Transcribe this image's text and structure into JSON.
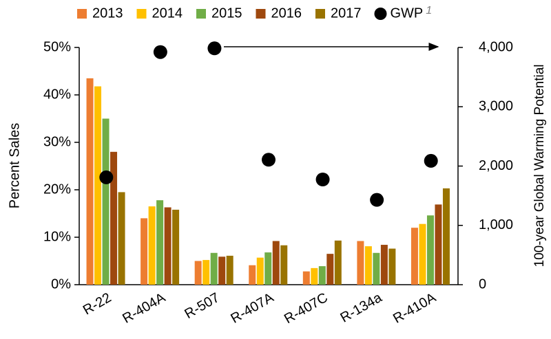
{
  "chart_data": {
    "type": "bar",
    "categories": [
      "R-22",
      "R-404A",
      "R-507",
      "R-407A",
      "R-407C",
      "R-134a",
      "R-410A"
    ],
    "y_label": "Percent Sales",
    "y2_label": "100-year Global Warming Potential",
    "ylim": [
      0,
      50
    ],
    "yticks": [
      {
        "value": 0,
        "label": "0%"
      },
      {
        "value": 10,
        "label": "10%"
      },
      {
        "value": 20,
        "label": "20%"
      },
      {
        "value": 30,
        "label": "30%"
      },
      {
        "value": 40,
        "label": "40%"
      },
      {
        "value": 50,
        "label": "50%"
      }
    ],
    "y2lim": [
      0,
      4000
    ],
    "y2ticks": [
      0,
      {
        "value": 1000,
        "label": "1,000"
      },
      {
        "value": 2000,
        "label": "2,000"
      },
      {
        "value": 3000,
        "label": "3,000"
      },
      {
        "value": 4000,
        "label": "4,000"
      }
    ],
    "legend_position": "top",
    "series": [
      {
        "name": "2013",
        "color": "#ed7d31",
        "values": [
          43.5,
          14,
          5,
          4.1,
          2.8,
          9.2,
          12
        ]
      },
      {
        "name": "2014",
        "color": "#ffc000",
        "values": [
          41.8,
          16.5,
          5.2,
          5.7,
          3.5,
          8.1,
          12.8
        ]
      },
      {
        "name": "2015",
        "color": "#70ad47",
        "values": [
          35,
          17.8,
          6.7,
          6.8,
          3.9,
          6.7,
          14.6
        ]
      },
      {
        "name": "2016",
        "color": "#9e480e",
        "values": [
          28,
          16.3,
          5.9,
          9.2,
          6.5,
          8.4,
          16.9
        ]
      },
      {
        "name": "2017",
        "color": "#997300",
        "values": [
          19.5,
          15.8,
          6.1,
          8.3,
          9.3,
          7.6,
          20.3
        ]
      },
      {
        "name": "GWP",
        "superscript": "1",
        "type": "scatter",
        "axis": "y2",
        "color": "#000000",
        "values": [
          1810,
          3922,
          3985,
          2107,
          1774,
          1430,
          2088
        ]
      }
    ]
  }
}
